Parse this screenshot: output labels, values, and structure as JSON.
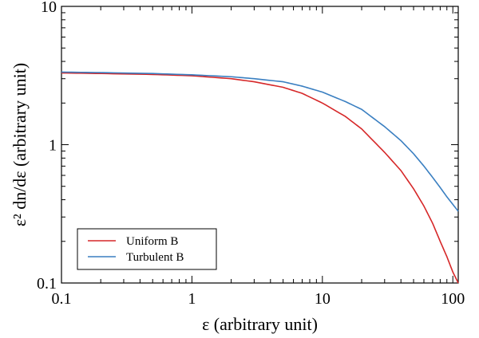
{
  "chart_data": {
    "type": "line",
    "title": "",
    "xlabel": "ε (arbitrary unit)",
    "ylabel": "ε² dn/dε (arbitrary unit)",
    "xscale": "log",
    "yscale": "log",
    "xlim": [
      0.1,
      110
    ],
    "ylim": [
      0.1,
      10
    ],
    "x_ticks": [
      {
        "value": 0.1,
        "label": "0.1"
      },
      {
        "value": 1,
        "label": "1"
      },
      {
        "value": 10,
        "label": "10"
      },
      {
        "value": 100,
        "label": "100"
      }
    ],
    "y_ticks": [
      {
        "value": 0.1,
        "label": "0.1"
      },
      {
        "value": 1,
        "label": "1"
      },
      {
        "value": 10,
        "label": "10"
      }
    ],
    "grid": false,
    "legend_placement": "bottom-left",
    "series": [
      {
        "name": "Uniform B",
        "color": "#d62728",
        "x": [
          0.1,
          0.2,
          0.5,
          1,
          2,
          3,
          5,
          7,
          10,
          15,
          20,
          30,
          40,
          50,
          60,
          70,
          80,
          90,
          100,
          110
        ],
        "y": [
          3.3,
          3.27,
          3.22,
          3.15,
          3.0,
          2.85,
          2.6,
          2.35,
          2.0,
          1.6,
          1.3,
          0.88,
          0.65,
          0.48,
          0.36,
          0.27,
          0.2,
          0.155,
          0.12,
          0.1
        ]
      },
      {
        "name": "Turbulent B",
        "color": "#3a7fc1",
        "x": [
          0.1,
          0.2,
          0.5,
          1,
          2,
          3,
          5,
          7,
          10,
          15,
          20,
          30,
          40,
          50,
          60,
          70,
          80,
          90,
          100,
          110
        ],
        "y": [
          3.35,
          3.32,
          3.27,
          3.2,
          3.1,
          3.0,
          2.85,
          2.65,
          2.4,
          2.05,
          1.8,
          1.35,
          1.07,
          0.86,
          0.7,
          0.58,
          0.49,
          0.42,
          0.37,
          0.33
        ]
      }
    ]
  }
}
